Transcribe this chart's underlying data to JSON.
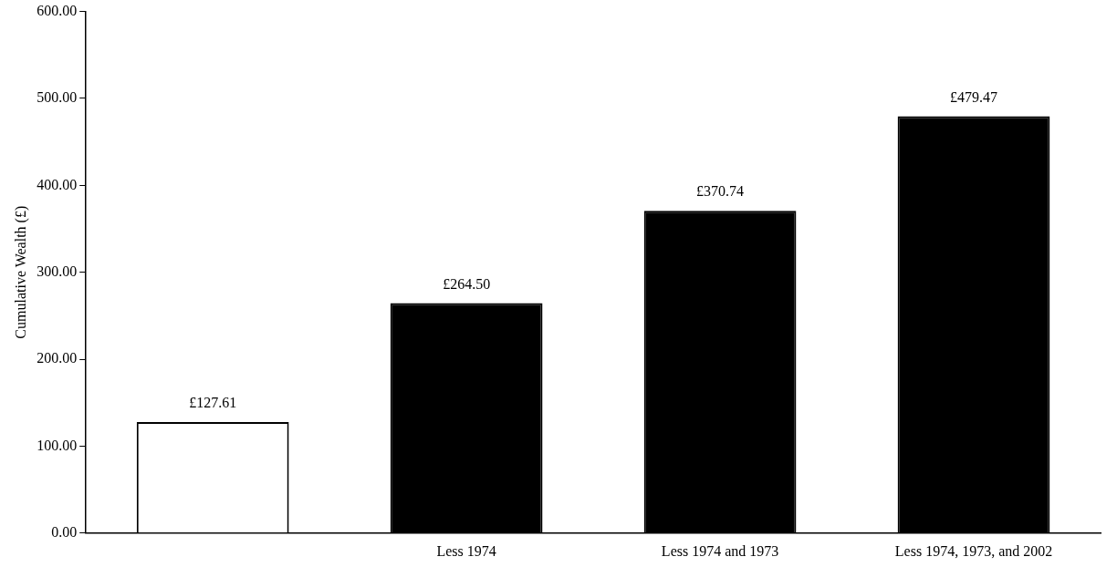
{
  "chart_data": {
    "type": "bar",
    "ylabel": "Cumulative Wealth (£)",
    "categories": [
      null,
      "Less 1974",
      "Less 1974 and 1973",
      "Less 1974, 1973, and 2002"
    ],
    "values": [
      127.61,
      264.5,
      370.74,
      479.47
    ],
    "colors": [
      "#ffffff",
      "#000000",
      "#000000",
      "#000000"
    ],
    "value_labels": [
      "£127.61",
      "£264.50",
      "£370.74",
      "£479.47"
    ],
    "ylim": [
      0,
      600
    ],
    "yticks": [
      {
        "value": 0,
        "label": "0.00"
      },
      {
        "value": 100,
        "label": "100.00"
      },
      {
        "value": 200,
        "label": "200.00"
      },
      {
        "value": 300,
        "label": "300.00"
      },
      {
        "value": 400,
        "label": "400.00"
      },
      {
        "value": 500,
        "label": "500.00"
      },
      {
        "value": 600,
        "label": "600.00"
      }
    ],
    "grid": false,
    "legend": false
  }
}
